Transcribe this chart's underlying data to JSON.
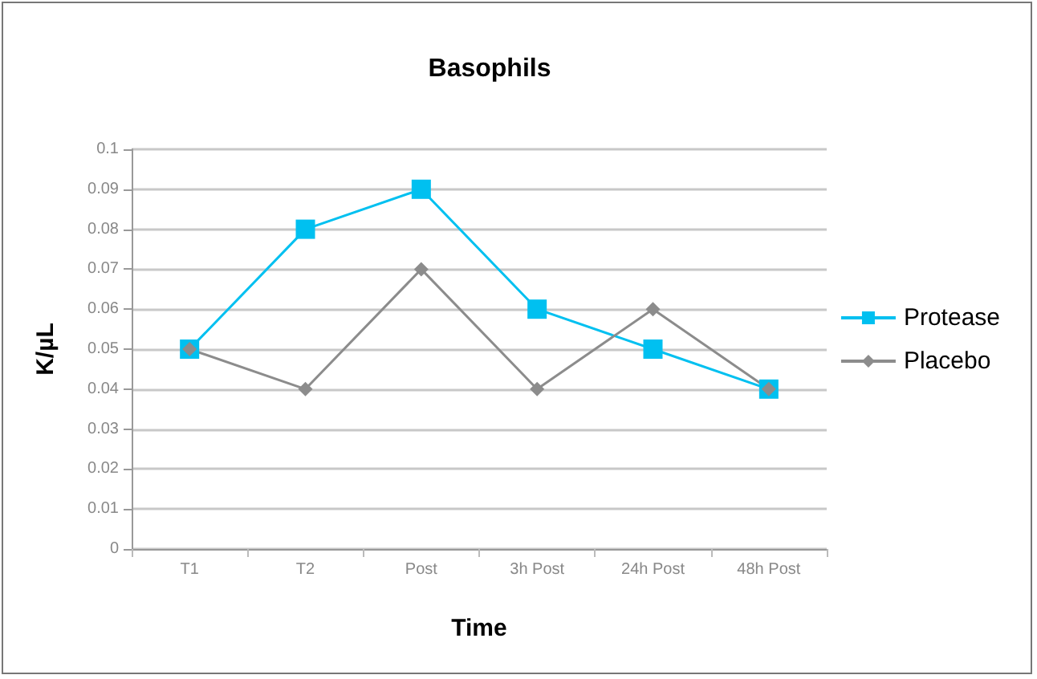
{
  "chart_data": {
    "type": "line",
    "title": "Basophils",
    "xlabel": "Time",
    "ylabel": "K/µL",
    "categories": [
      "T1",
      "T2",
      "Post",
      "3h Post",
      "24h Post",
      "48h Post"
    ],
    "series": [
      {
        "name": "Protease",
        "color": "#00c0f0",
        "marker": "square",
        "values": [
          0.05,
          0.08,
          0.09,
          0.06,
          0.05,
          0.04
        ]
      },
      {
        "name": "Placebo",
        "color": "#8c8c8c",
        "marker": "diamond",
        "values": [
          0.05,
          0.04,
          0.07,
          0.04,
          0.06,
          0.04
        ]
      }
    ],
    "ylim": [
      0,
      0.1
    ],
    "yticks": [
      0,
      0.01,
      0.02,
      0.03,
      0.04,
      0.05,
      0.06,
      0.07,
      0.08,
      0.09,
      0.1
    ],
    "grid": "y",
    "legend": "right"
  }
}
